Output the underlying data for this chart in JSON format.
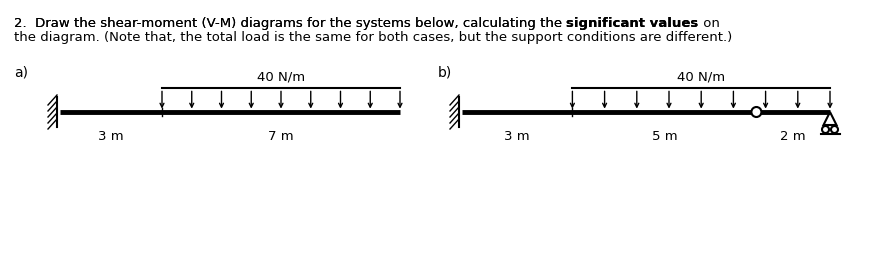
{
  "title_line1": "2.  Draw the shear-moment (V-M) diagrams for the systems below, calculating the ",
  "title_bold": "significant values",
  "title_end": " on",
  "title_line2": "the diagram. (Note that, the total load is the same for both cases, but the support conditions are different.)",
  "label_a": "a)",
  "label_b": "b)",
  "load_label": "40 N/m",
  "a_dim1": "3 m",
  "a_dim2": "7 m",
  "b_dim1": "3 m",
  "b_dim2": "5 m",
  "b_dim3": "2 m",
  "bg_color": "#ffffff",
  "lc": "#000000",
  "fontsize": 9.5,
  "beam_lw": 3.5,
  "fig_w": 8.77,
  "fig_h": 2.6,
  "dpi": 100
}
